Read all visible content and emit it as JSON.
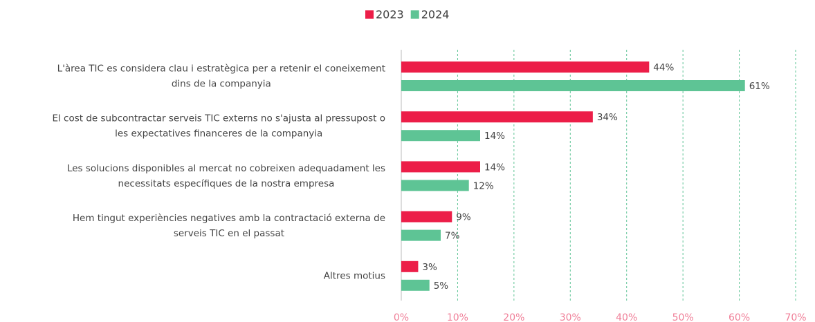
{
  "chart_data": {
    "type": "bar",
    "orientation": "horizontal",
    "categories": [
      [
        "L'àrea TIC es considera clau i estratègica per a retenir el coneixement",
        "dins de la companyia"
      ],
      [
        "El cost de subcontractar serveis TIC externs no s'ajusta al pressupost o",
        "les expectatives financeres de la companyia"
      ],
      [
        "Les solucions disponibles al mercat no cobreixen adequadament les",
        "necessitats específiques de la nostra empresa"
      ],
      [
        "Hem tingut experiències negatives amb la contractació externa de",
        "serveis TIC en el passat"
      ],
      [
        "Altres motius"
      ]
    ],
    "series": [
      {
        "name": "2023",
        "color": "#ec1e48",
        "values": [
          44,
          34,
          14,
          9,
          3
        ],
        "value_labels": [
          "44%",
          "34%",
          "14%",
          "9%",
          "3%"
        ]
      },
      {
        "name": "2024",
        "color": "#5ec495",
        "values": [
          61,
          14,
          12,
          7,
          5
        ],
        "value_labels": [
          "61%",
          "14%",
          "12%",
          "7%",
          "5%"
        ]
      }
    ],
    "xlim": [
      0,
      70
    ],
    "xticks": [
      {
        "value": 0,
        "label": "0%"
      },
      {
        "value": 10,
        "label": "10%"
      },
      {
        "value": 20,
        "label": "20%"
      },
      {
        "value": 30,
        "label": "30%"
      },
      {
        "value": 40,
        "label": "40%"
      },
      {
        "value": 50,
        "label": "50%"
      },
      {
        "value": 60,
        "label": "60%"
      },
      {
        "value": 70,
        "label": "70%"
      }
    ],
    "grid": true,
    "legend": "top"
  }
}
